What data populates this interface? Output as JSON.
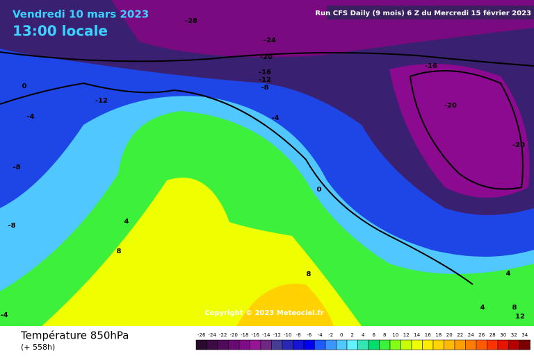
{
  "header": {
    "date": "Vendredi 10 mars 2023",
    "time": "13:00 locale",
    "run": "Run CFS Daily (9 mois) 6 Z du Mercredi 15 février 2023"
  },
  "map": {
    "contour_labels": [
      "-28",
      "-24",
      "-20",
      "-16",
      "-12",
      "-8",
      "-4",
      "0",
      "-12",
      "0",
      "-4",
      "-8",
      "-8",
      "4",
      "8",
      "-16",
      "-20",
      "-20",
      "8",
      "4",
      "4",
      "8",
      "12",
      "-4"
    ],
    "copyright": "Copyright © 2023 Meteociel.fr"
  },
  "footer": {
    "title": "Température 850hPa",
    "lead": "(+ 558h)"
  },
  "colorbar": {
    "ticks": [
      -26,
      -24,
      -22,
      -20,
      -18,
      -16,
      -14,
      -12,
      -10,
      -8,
      -6,
      -4,
      -2,
      0,
      2,
      4,
      6,
      8,
      10,
      12,
      14,
      16,
      18,
      20,
      22,
      24,
      26,
      28,
      30,
      32,
      34
    ],
    "colors": [
      "#2a0a2e",
      "#3d0a45",
      "#520a5c",
      "#680a72",
      "#800a88",
      "#961496",
      "#6e2882",
      "#463c96",
      "#2828b4",
      "#1414d2",
      "#0000f0",
      "#1e5aff",
      "#3c96ff",
      "#50c8ff",
      "#64f0ff",
      "#32e6b4",
      "#00dc6e",
      "#3cf03c",
      "#82ff14",
      "#c8ff00",
      "#f0ff00",
      "#ffeb00",
      "#ffd200",
      "#ffb900",
      "#ffa000",
      "#ff7d00",
      "#ff5a00",
      "#ff3200",
      "#e61400",
      "#b40000",
      "#780000"
    ]
  }
}
